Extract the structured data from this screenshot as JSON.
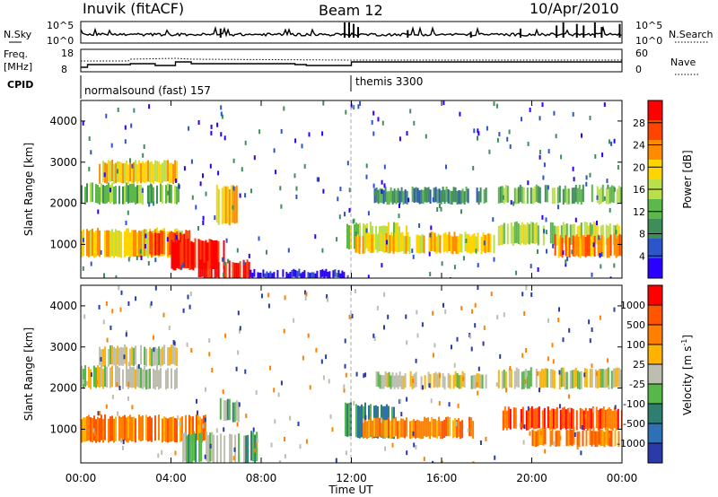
{
  "header": {
    "title": "Inuvik (fitACF)",
    "beam": "Beam 12",
    "date": "10/Apr/2010"
  },
  "top_panels": {
    "nsky_label": "N.Sky",
    "nsky_ticks": [
      "10^5",
      "10^0"
    ],
    "nsearch_label": "N.Search",
    "nsearch_ticks": [
      "10^5",
      "10^0"
    ],
    "freq_label": "Freq.",
    "freq_unit": "[MHz]",
    "freq_ticks": [
      "18",
      "8"
    ],
    "nave_label": "Nave",
    "nave_ticks": [
      "60",
      "0"
    ],
    "cpid_label": "CPID",
    "cpid_segments": [
      {
        "name": "normalsound (fast) 157",
        "start_hour": 0,
        "end_hour": 12
      },
      {
        "name": "themis 3300",
        "start_hour": 12,
        "end_hour": 24
      }
    ]
  },
  "colors": {
    "power": [
      "#2a00ff",
      "#2b55c8",
      "#3e8e5a",
      "#5cb84a",
      "#b9e04a",
      "#ffd500",
      "#ff8c00",
      "#ff4400",
      "#ff0000"
    ],
    "velocity": [
      "#2a3aa8",
      "#2f6fb5",
      "#2e7f70",
      "#55b848",
      "#bdbdb0",
      "#ffb300",
      "#ff8000",
      "#ff5500",
      "#ff0000"
    ],
    "grid": "#cccccc"
  },
  "chart_data": [
    {
      "type": "heatmap",
      "name": "power",
      "xlabel": "",
      "ylabel": "Slant Range [km]",
      "xlim": [
        0,
        24
      ],
      "ylim": [
        180,
        4500
      ],
      "yticks": [
        "1000",
        "2000",
        "3000",
        "4000"
      ],
      "colorbar_label": "Power [dB]",
      "colorbar_ticks": [
        "4",
        "8",
        "12",
        "16",
        "20",
        "24",
        "28"
      ],
      "echo_bands": [
        {
          "t0": 0.0,
          "t1": 4.5,
          "r0": 700,
          "r1": 1350,
          "level": 5
        },
        {
          "t0": 2.8,
          "t1": 4.8,
          "r0": 750,
          "r1": 1300,
          "level": 7
        },
        {
          "t0": 4.0,
          "t1": 6.5,
          "r0": 400,
          "r1": 1100,
          "level": 8
        },
        {
          "t0": 5.2,
          "t1": 7.5,
          "r0": 180,
          "r1": 600,
          "level": 8
        },
        {
          "t0": 0.0,
          "t1": 4.3,
          "r0": 2000,
          "r1": 2450,
          "level": 3
        },
        {
          "t0": 0.8,
          "t1": 4.3,
          "r0": 2500,
          "r1": 3000,
          "level": 5
        },
        {
          "t0": 6.0,
          "t1": 7.0,
          "r0": 1500,
          "r1": 2400,
          "level": 5
        },
        {
          "t0": 11.7,
          "t1": 14.6,
          "r0": 900,
          "r1": 1500,
          "level": 4
        },
        {
          "t0": 12.0,
          "t1": 18.3,
          "r0": 800,
          "r1": 1250,
          "level": 5
        },
        {
          "t0": 13.0,
          "t1": 18.0,
          "r0": 2000,
          "r1": 2350,
          "level": 2
        },
        {
          "t0": 18.5,
          "t1": 24.0,
          "r0": 1000,
          "r1": 1500,
          "level": 4
        },
        {
          "t0": 21.0,
          "t1": 24.0,
          "r0": 700,
          "r1": 1200,
          "level": 6
        },
        {
          "t0": 18.5,
          "t1": 24.0,
          "r0": 2000,
          "r1": 2400,
          "level": 3
        },
        {
          "t0": 7.5,
          "t1": 11.7,
          "r0": 180,
          "r1": 350,
          "level": 0
        }
      ]
    },
    {
      "type": "heatmap",
      "name": "velocity",
      "xlabel": "Time UT",
      "ylabel": "Slant Range [km]",
      "xlim": [
        0,
        24
      ],
      "ylim": [
        180,
        4500
      ],
      "xticks": [
        "00:00",
        "04:00",
        "08:00",
        "12:00",
        "16:00",
        "20:00",
        "00:00"
      ],
      "yticks": [
        "1000",
        "2000",
        "3000",
        "4000"
      ],
      "colorbar_label": "Velocity [m s",
      "colorbar_exponent": "-1",
      "colorbar_label_close": "]",
      "colorbar_ticks": [
        "1000",
        "500",
        "100",
        "25",
        "-25",
        "-100",
        "-500",
        "-1000"
      ],
      "echo_bands": [
        {
          "t0": 0.0,
          "t1": 5.5,
          "r0": 700,
          "r1": 1300,
          "level": 6
        },
        {
          "t0": 0.0,
          "t1": 4.3,
          "r0": 2000,
          "r1": 2500,
          "level": 4
        },
        {
          "t0": 0.8,
          "t1": 4.3,
          "r0": 2550,
          "r1": 3000,
          "level": 4
        },
        {
          "t0": 4.5,
          "t1": 7.8,
          "r0": 200,
          "r1": 900,
          "level": 3
        },
        {
          "t0": 6.0,
          "t1": 7.0,
          "r0": 1200,
          "r1": 1700,
          "level": 3
        },
        {
          "t0": 11.7,
          "t1": 14.0,
          "r0": 800,
          "r1": 1600,
          "level": 2
        },
        {
          "t0": 12.5,
          "t1": 17.5,
          "r0": 800,
          "r1": 1250,
          "level": 6
        },
        {
          "t0": 13.0,
          "t1": 18.0,
          "r0": 2000,
          "r1": 2350,
          "level": 4
        },
        {
          "t0": 18.7,
          "t1": 24.0,
          "r0": 1000,
          "r1": 1500,
          "level": 7
        },
        {
          "t0": 20.0,
          "t1": 24.0,
          "r0": 600,
          "r1": 1000,
          "level": 6
        },
        {
          "t0": 18.5,
          "t1": 24.0,
          "r0": 2000,
          "r1": 2450,
          "level": 4
        }
      ]
    }
  ]
}
